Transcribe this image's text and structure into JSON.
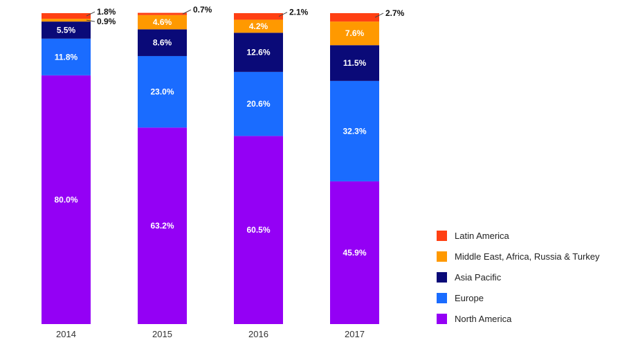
{
  "chart_data": {
    "type": "bar",
    "stacked": true,
    "title": "",
    "xlabel": "",
    "ylabel": "",
    "ylim": [
      0,
      100
    ],
    "categories": [
      "2014",
      "2015",
      "2016",
      "2017"
    ],
    "series": [
      {
        "name": "North America",
        "color": "#9400f5",
        "values": [
          80.0,
          63.2,
          60.5,
          45.9
        ],
        "labels": [
          "80.0%",
          "63.2%",
          "60.5%",
          "45.9%"
        ]
      },
      {
        "name": "Europe",
        "color": "#1a6cff",
        "values": [
          11.8,
          23.0,
          20.6,
          32.3
        ],
        "labels": [
          "11.8%",
          "23.0%",
          "20.6%",
          "32.3%"
        ]
      },
      {
        "name": "Asia Pacific",
        "color": "#0a0a78",
        "values": [
          5.5,
          8.6,
          12.6,
          11.5
        ],
        "labels": [
          "5.5%",
          "8.6%",
          "12.6%",
          "11.5%"
        ]
      },
      {
        "name": "Middle East, Africa, Russia & Turkey",
        "color": "#ff9900",
        "values": [
          0.9,
          4.6,
          4.2,
          7.6
        ],
        "labels": [
          "0.9%",
          "4.6%",
          "4.2%",
          "7.6%"
        ]
      },
      {
        "name": "Latin America",
        "color": "#ff4013",
        "values": [
          1.8,
          0.7,
          2.1,
          2.7
        ],
        "labels": [
          "1.8%",
          "0.7%",
          "2.1%",
          "2.7%"
        ]
      }
    ],
    "legend": {
      "position": "bottom-right",
      "order": [
        "Latin America",
        "Middle East, Africa, Russia & Turkey",
        "Asia Pacific",
        "Europe",
        "North America"
      ]
    }
  }
}
